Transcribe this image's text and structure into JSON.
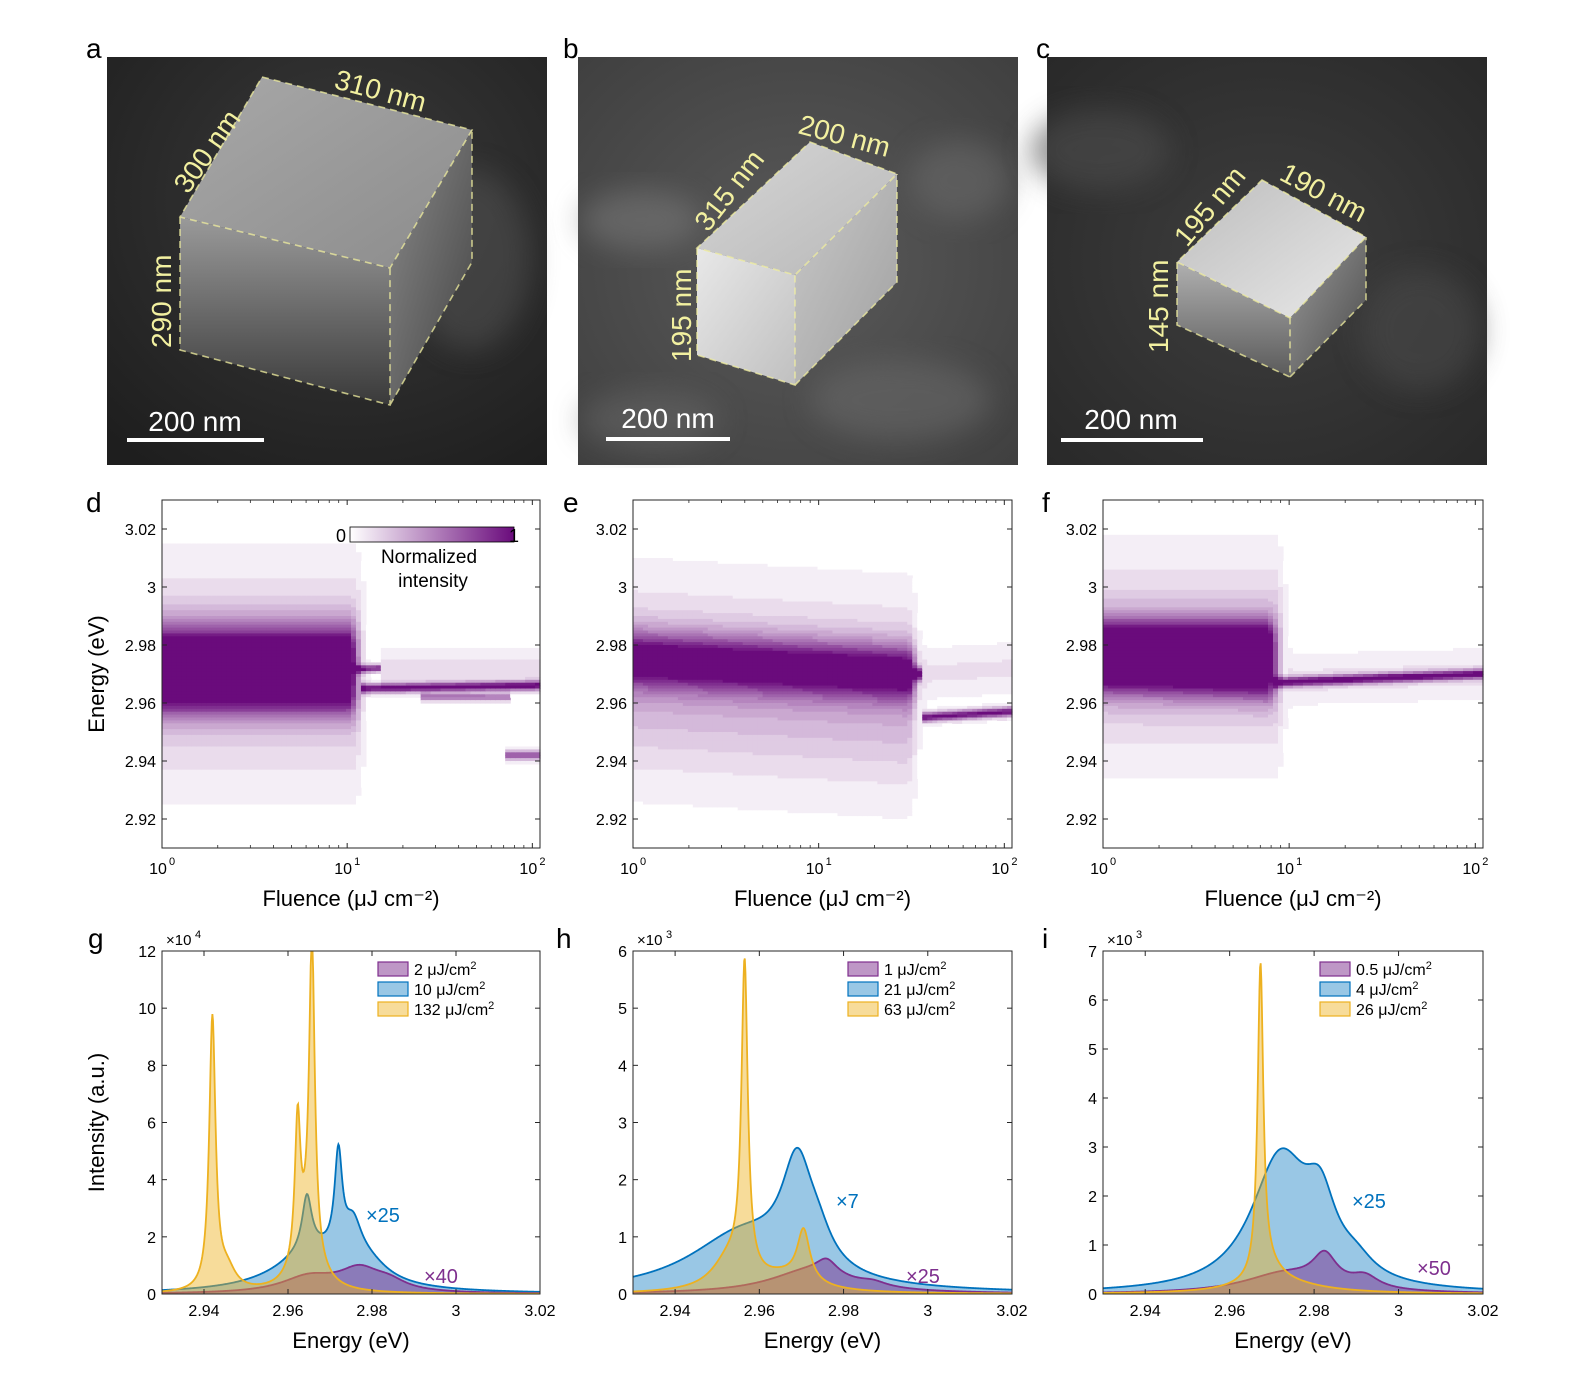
{
  "figure": {
    "panel_letters": [
      "a",
      "b",
      "c",
      "d",
      "e",
      "f",
      "g",
      "h",
      "i"
    ],
    "colors": {
      "purple": "#7e2f8e",
      "blue": "#0072bd",
      "yellow": "#edb120",
      "annotation_yellow": "#f2f0a0",
      "heat_high": "#6a0b7c"
    }
  },
  "sem_panels": [
    {
      "id": "a",
      "dims": [
        "300 nm",
        "310 nm",
        "290 nm"
      ],
      "scalebar_label": "200 nm",
      "icon": "nanocube-sem-image"
    },
    {
      "id": "b",
      "dims": [
        "315 nm",
        "200 nm",
        "195 nm"
      ],
      "scalebar_label": "200 nm",
      "icon": "nanocube-sem-image"
    },
    {
      "id": "c",
      "dims": [
        "195 nm",
        "190 nm",
        "145 nm"
      ],
      "scalebar_label": "200 nm",
      "icon": "nanocube-sem-image"
    }
  ],
  "chart_data": [
    {
      "id": "d",
      "type": "heatmap",
      "xlabel": "Fluence (μJ cm⁻²)",
      "ylabel": "Energy (eV)",
      "xscale": "log",
      "xlim": [
        1,
        110
      ],
      "ylim": [
        2.91,
        3.03
      ],
      "xticks": [
        1,
        10,
        100
      ],
      "xtick_labels": [
        {
          "base": "10",
          "exp": "0"
        },
        {
          "base": "10",
          "exp": "1"
        },
        {
          "base": "10",
          "exp": "2"
        }
      ],
      "yticks": [
        2.92,
        2.94,
        2.96,
        2.98,
        3.0,
        3.02
      ],
      "ytick_labels": [
        "2.92",
        "2.94",
        "2.96",
        "2.98",
        "3",
        "3.02"
      ],
      "colorbar": {
        "min_label": "0",
        "max_label": "1",
        "label_line1": "Normalized",
        "label_line2": "intensity"
      },
      "broad_blobs": [
        {
          "x0": 1,
          "x1": 12,
          "e0": 2.977,
          "width": 0.01,
          "amp": 0.95
        },
        {
          "x0": 1,
          "x1": 12,
          "e0": 2.963,
          "width": 0.008,
          "amp": 0.7
        },
        {
          "x0": 1,
          "x1": 13,
          "e0": 2.97,
          "width": 0.03,
          "amp": 0.35
        }
      ],
      "lines": [
        {
          "x0": 6,
          "x1": 15,
          "e_start": 2.971,
          "e_end": 2.972,
          "width": 0.0013,
          "amp": 0.9
        },
        {
          "x0": 12,
          "x1": 110,
          "e_start": 2.965,
          "e_end": 2.966,
          "width": 0.0016,
          "amp": 1.0
        },
        {
          "x0": 25,
          "x1": 75,
          "e_start": 2.962,
          "e_end": 2.962,
          "width": 0.0012,
          "amp": 0.6
        },
        {
          "x0": 70,
          "x1": 110,
          "e_start": 2.942,
          "e_end": 2.942,
          "width": 0.0015,
          "amp": 0.7
        },
        {
          "x0": 15,
          "x1": 110,
          "e_start": 2.972,
          "e_end": 2.972,
          "width": 0.006,
          "amp": 0.15
        }
      ]
    },
    {
      "id": "e",
      "type": "heatmap",
      "xlabel": "Fluence (μJ cm⁻²)",
      "ylabel": "",
      "xscale": "log",
      "xlim": [
        1,
        110
      ],
      "ylim": [
        2.91,
        3.03
      ],
      "xticks": [
        1,
        10,
        100
      ],
      "xtick_labels": [
        {
          "base": "10",
          "exp": "0"
        },
        {
          "base": "10",
          "exp": "1"
        },
        {
          "base": "10",
          "exp": "2"
        }
      ],
      "yticks": [
        2.92,
        2.94,
        2.96,
        2.98,
        3.0,
        3.02
      ],
      "ytick_labels": [
        "2.92",
        "2.94",
        "2.96",
        "2.98",
        "3",
        "3.02"
      ],
      "broad_blobs": [
        {
          "x0": 1,
          "x1": 36,
          "e0": 2.975,
          "e1": 2.97,
          "width": 0.009,
          "amp": 0.95
        },
        {
          "x0": 1,
          "x1": 36,
          "e0": 2.968,
          "e1": 2.962,
          "width": 0.028,
          "amp": 0.35
        }
      ],
      "lines": [
        {
          "x0": 20,
          "x1": 36,
          "e_start": 2.97,
          "e_end": 2.97,
          "width": 0.002,
          "amp": 1.0
        },
        {
          "x0": 36,
          "x1": 110,
          "e_start": 2.955,
          "e_end": 2.957,
          "width": 0.0016,
          "amp": 1.0
        },
        {
          "x0": 36,
          "x1": 110,
          "e_start": 2.97,
          "e_end": 2.972,
          "width": 0.008,
          "amp": 0.12
        }
      ]
    },
    {
      "id": "f",
      "type": "heatmap",
      "xlabel": "Fluence (μJ cm⁻²)",
      "ylabel": "",
      "xscale": "log",
      "xlim": [
        1,
        110
      ],
      "ylim": [
        2.91,
        3.03
      ],
      "xticks": [
        1,
        10,
        100
      ],
      "xtick_labels": [
        {
          "base": "10",
          "exp": "0"
        },
        {
          "base": "10",
          "exp": "1"
        },
        {
          "base": "10",
          "exp": "2"
        }
      ],
      "yticks": [
        2.92,
        2.94,
        2.96,
        2.98,
        3.0,
        3.02
      ],
      "ytick_labels": [
        "2.92",
        "2.94",
        "2.96",
        "2.98",
        "3",
        "3.02"
      ],
      "broad_blobs": [
        {
          "x0": 1,
          "x1": 9,
          "e0": 2.981,
          "width": 0.008,
          "amp": 0.95
        },
        {
          "x0": 1,
          "x1": 9,
          "e0": 2.971,
          "e1": 2.969,
          "width": 0.008,
          "amp": 0.9
        },
        {
          "x0": 1,
          "x1": 10,
          "e0": 2.976,
          "width": 0.028,
          "amp": 0.35
        }
      ],
      "lines": [
        {
          "x0": 8,
          "x1": 110,
          "e_start": 2.967,
          "e_end": 2.97,
          "width": 0.0016,
          "amp": 1.0
        },
        {
          "x0": 10,
          "x1": 110,
          "e_start": 2.968,
          "e_end": 2.97,
          "width": 0.008,
          "amp": 0.12
        }
      ]
    },
    {
      "id": "g",
      "type": "area",
      "xlabel": "Energy (eV)",
      "ylabel": "Intensity (a.u.)",
      "xlim": [
        2.93,
        3.02
      ],
      "ylim": [
        0,
        12
      ],
      "exponent_base": "×10",
      "exponent_power": "4",
      "xticks": [
        2.94,
        2.96,
        2.98,
        3.0,
        3.02
      ],
      "xtick_labels": [
        "2.94",
        "2.96",
        "2.98",
        "3",
        "3.02"
      ],
      "yticks": [
        0,
        2,
        4,
        6,
        8,
        10,
        12
      ],
      "ytick_labels": [
        "0",
        "2",
        "4",
        "6",
        "8",
        "10",
        "12"
      ],
      "series": [
        {
          "name_value": "2",
          "name_unit": "μJ/cm",
          "name_exp": "2",
          "color": "#7e2f8e",
          "multiplier": "×40",
          "peaks": [
            {
              "x0": 2.965,
              "amp": 0.55,
              "gamma": 0.008
            },
            {
              "x0": 2.977,
              "amp": 0.75,
              "gamma": 0.006
            },
            {
              "x0": 2.984,
              "amp": 0.3,
              "gamma": 0.005
            }
          ]
        },
        {
          "name_value": "10",
          "name_unit": "μJ/cm",
          "name_exp": "2",
          "color": "#0072bd",
          "multiplier": "×25",
          "peaks": [
            {
              "x0": 2.966,
              "amp": 1.4,
              "gamma": 0.011
            },
            {
              "x0": 2.9645,
              "amp": 1.9,
              "gamma": 0.0014
            },
            {
              "x0": 2.972,
              "amp": 3.4,
              "gamma": 0.0011
            },
            {
              "x0": 2.9755,
              "amp": 1.3,
              "gamma": 0.0025
            },
            {
              "x0": 2.979,
              "amp": 0.6,
              "gamma": 0.006
            }
          ]
        },
        {
          "name_value": "132",
          "name_unit": "μJ/cm",
          "name_exp": "2",
          "color": "#edb120",
          "multiplier": "",
          "peaks": [
            {
              "x0": 2.942,
              "amp": 9.5,
              "gamma": 0.0009
            },
            {
              "x0": 2.9455,
              "amp": 0.7,
              "gamma": 0.0025
            },
            {
              "x0": 2.9623,
              "amp": 4.9,
              "gamma": 0.0008
            },
            {
              "x0": 2.9657,
              "amp": 11.0,
              "gamma": 0.0008
            },
            {
              "x0": 2.9645,
              "amp": 1.6,
              "gamma": 0.0035
            }
          ]
        }
      ]
    },
    {
      "id": "h",
      "type": "area",
      "xlabel": "Energy (eV)",
      "ylabel": "",
      "xlim": [
        2.93,
        3.02
      ],
      "ylim": [
        0,
        6
      ],
      "exponent_base": "×10",
      "exponent_power": "3",
      "xticks": [
        2.94,
        2.96,
        2.98,
        3.0,
        3.02
      ],
      "xtick_labels": [
        "2.94",
        "2.96",
        "2.98",
        "3",
        "3.02"
      ],
      "yticks": [
        0,
        1,
        2,
        3,
        4,
        5,
        6
      ],
      "ytick_labels": [
        "0",
        "1",
        "2",
        "3",
        "4",
        "5",
        "6"
      ],
      "series": [
        {
          "name_value": "1",
          "name_unit": "μJ/cm",
          "name_exp": "2",
          "color": "#7e2f8e",
          "multiplier": "×25",
          "peaks": [
            {
              "x0": 2.972,
              "amp": 0.4,
              "gamma": 0.012
            },
            {
              "x0": 2.976,
              "amp": 0.25,
              "gamma": 0.003
            },
            {
              "x0": 2.987,
              "amp": 0.08,
              "gamma": 0.004
            }
          ]
        },
        {
          "name_value": "21",
          "name_unit": "μJ/cm",
          "name_exp": "2",
          "color": "#0072bd",
          "multiplier": "×7",
          "peaks": [
            {
              "x0": 2.956,
              "amp": 1.0,
              "gamma": 0.016
            },
            {
              "x0": 2.969,
              "amp": 1.8,
              "gamma": 0.0045
            },
            {
              "x0": 2.974,
              "amp": 0.4,
              "gamma": 0.004
            }
          ]
        },
        {
          "name_value": "63",
          "name_unit": "μJ/cm",
          "name_exp": "2",
          "color": "#edb120",
          "multiplier": "",
          "peaks": [
            {
              "x0": 2.9565,
              "amp": 5.4,
              "gamma": 0.0009
            },
            {
              "x0": 2.953,
              "amp": 0.55,
              "gamma": 0.005
            },
            {
              "x0": 2.9705,
              "amp": 0.9,
              "gamma": 0.0018
            },
            {
              "x0": 2.966,
              "amp": 0.25,
              "gamma": 0.008
            }
          ]
        }
      ]
    },
    {
      "id": "i",
      "type": "area",
      "xlabel": "Energy (eV)",
      "ylabel": "",
      "xlim": [
        2.93,
        3.02
      ],
      "ylim": [
        0,
        7
      ],
      "exponent_base": "×10",
      "exponent_power": "3",
      "xticks": [
        2.94,
        2.96,
        2.98,
        3.0,
        3.02
      ],
      "xtick_labels": [
        "2.94",
        "2.96",
        "2.98",
        "3",
        "3.02"
      ],
      "yticks": [
        0,
        1,
        2,
        3,
        4,
        5,
        6,
        7
      ],
      "ytick_labels": [
        "0",
        "1",
        "2",
        "3",
        "4",
        "5",
        "6",
        "7"
      ],
      "series": [
        {
          "name_value": "0.5",
          "name_unit": "μJ/cm",
          "name_exp": "2",
          "color": "#7e2f8e",
          "multiplier": "×50",
          "peaks": [
            {
              "x0": 2.973,
              "amp": 0.4,
              "gamma": 0.012
            },
            {
              "x0": 2.9825,
              "amp": 0.6,
              "gamma": 0.0035
            },
            {
              "x0": 2.992,
              "amp": 0.25,
              "gamma": 0.004
            }
          ]
        },
        {
          "name_value": "4",
          "name_unit": "μJ/cm",
          "name_exp": "2",
          "color": "#0072bd",
          "multiplier": "×25",
          "peaks": [
            {
              "x0": 2.972,
              "amp": 2.7,
              "gamma": 0.0085
            },
            {
              "x0": 2.9815,
              "amp": 1.3,
              "gamma": 0.0045
            },
            {
              "x0": 2.99,
              "amp": 0.3,
              "gamma": 0.005
            }
          ]
        },
        {
          "name_value": "26",
          "name_unit": "μJ/cm",
          "name_exp": "2",
          "color": "#edb120",
          "multiplier": "",
          "peaks": [
            {
              "x0": 2.9673,
              "amp": 6.3,
              "gamma": 0.0008
            },
            {
              "x0": 2.969,
              "amp": 0.35,
              "gamma": 0.004
            },
            {
              "x0": 2.972,
              "amp": 0.2,
              "gamma": 0.012
            }
          ]
        }
      ]
    }
  ]
}
